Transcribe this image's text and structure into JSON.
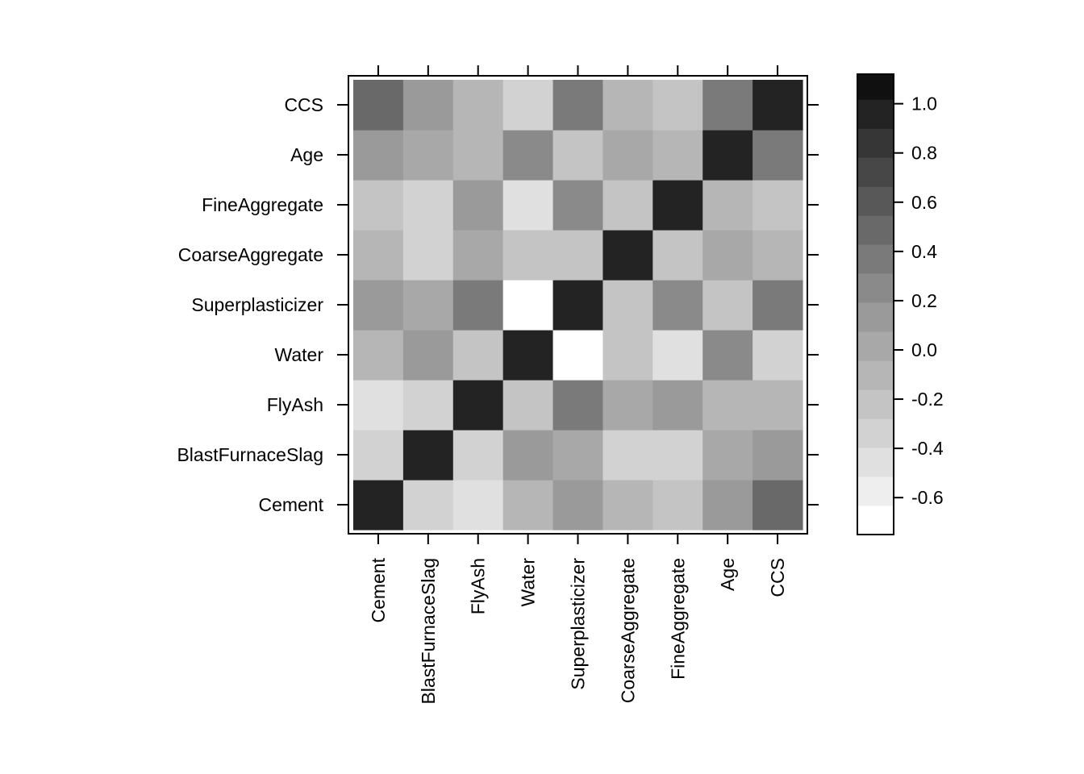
{
  "chart_data": {
    "type": "heatmap",
    "title": "",
    "xlabel": "",
    "ylabel": "",
    "variables": [
      "Cement",
      "BlastFurnaceSlag",
      "FlyAsh",
      "Water",
      "Superplasticizer",
      "CoarseAggregate",
      "FineAggregate",
      "Age",
      "CCS"
    ],
    "rows": [
      "Cement",
      "BlastFurnaceSlag",
      "FlyAsh",
      "Water",
      "Superplasticizer",
      "CoarseAggregate",
      "FineAggregate",
      "Age",
      "CCS"
    ],
    "columns": [
      "Cement",
      "BlastFurnaceSlag",
      "FlyAsh",
      "Water",
      "Superplasticizer",
      "CoarseAggregate",
      "FineAggregate",
      "Age",
      "CCS"
    ],
    "values": [
      [
        1.0,
        -0.28,
        -0.4,
        -0.08,
        0.09,
        -0.11,
        -0.22,
        0.08,
        0.5
      ],
      [
        -0.28,
        1.0,
        -0.32,
        0.11,
        0.04,
        -0.28,
        -0.28,
        -0.04,
        0.13
      ],
      [
        -0.4,
        -0.32,
        1.0,
        -0.26,
        0.38,
        -0.01,
        0.08,
        -0.15,
        -0.11
      ],
      [
        -0.08,
        0.11,
        -0.26,
        1.0,
        -0.66,
        -0.18,
        -0.45,
        0.28,
        -0.29
      ],
      [
        0.09,
        0.04,
        0.38,
        -0.66,
        1.0,
        -0.27,
        0.22,
        -0.19,
        0.37
      ],
      [
        -0.11,
        -0.28,
        -0.01,
        -0.18,
        -0.27,
        1.0,
        -0.18,
        0.0,
        -0.16
      ],
      [
        -0.22,
        -0.28,
        0.08,
        -0.45,
        0.22,
        -0.18,
        1.0,
        -0.16,
        -0.17
      ],
      [
        0.08,
        -0.04,
        -0.15,
        0.28,
        -0.19,
        0.0,
        -0.16,
        1.0,
        0.33
      ],
      [
        0.5,
        0.13,
        -0.11,
        -0.29,
        0.37,
        -0.16,
        -0.17,
        0.33,
        1.0
      ]
    ],
    "colorbar": {
      "range": [
        -0.75,
        1.12
      ],
      "breaks": [
        -0.75,
        -0.632,
        -0.514,
        -0.396,
        -0.279,
        -0.161,
        -0.043,
        0.075,
        0.193,
        0.311,
        0.429,
        0.546,
        0.664,
        0.782,
        0.9,
        1.018,
        1.12
      ],
      "colors": [
        "#ffffff",
        "#eeeeee",
        "#e0e0e0",
        "#d2d2d2",
        "#c4c4c4",
        "#b6b6b6",
        "#a8a8a8",
        "#9a9a9a",
        "#8a8a8a",
        "#7a7a7a",
        "#696969",
        "#585858",
        "#474747",
        "#363636",
        "#232323",
        "#101010",
        "#000000"
      ],
      "ticks": [
        1.0,
        0.8,
        0.6,
        0.4,
        0.2,
        0.0,
        -0.2,
        -0.4,
        -0.6
      ],
      "tick_labels": [
        "1.0",
        "0.8",
        "0.6",
        "0.4",
        "0.2",
        "0.0",
        "-0.2",
        "-0.4",
        "-0.6"
      ]
    }
  }
}
